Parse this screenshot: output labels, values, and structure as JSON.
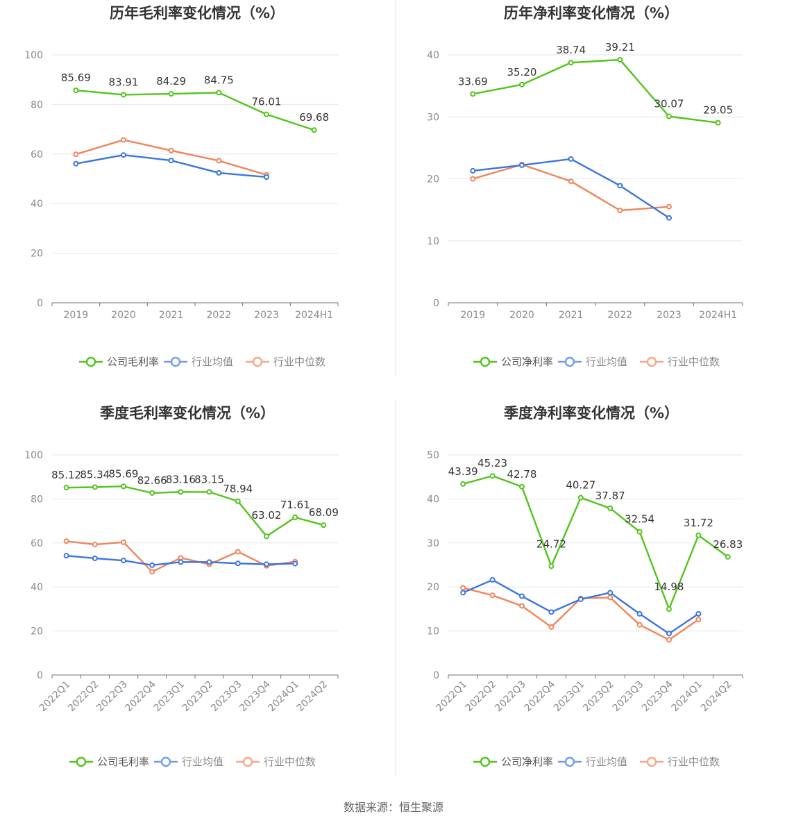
{
  "source": "数据来源：恒生聚源",
  "colors": {
    "company": "#52c41a",
    "industry_avg": "#3a75e0",
    "industry_median": "#f0845a"
  },
  "legend_labels": {
    "industry_avg": "行业均值",
    "industry_median": "行业中位数"
  },
  "chart_data": [
    {
      "id": "annual-gross",
      "type": "line",
      "title": "历年毛利率变化情况（%）",
      "categories": [
        "2019",
        "2020",
        "2021",
        "2022",
        "2023",
        "2024H1"
      ],
      "ylim": [
        0,
        100
      ],
      "yticks": [
        0,
        20,
        40,
        60,
        80,
        100
      ],
      "grid": true,
      "legend_position": "bottom",
      "series": [
        {
          "name": "公司毛利率",
          "key": "company",
          "values": [
            85.69,
            83.91,
            84.29,
            84.75,
            76.01,
            69.68
          ],
          "labels": [
            "85.69",
            "83.91",
            "84.29",
            "84.75",
            "76.01",
            "69.68"
          ]
        },
        {
          "name": "行业均值",
          "key": "industry_avg",
          "values": [
            56.1,
            59.6,
            57.4,
            52.4,
            50.7,
            null
          ]
        },
        {
          "name": "行业中位数",
          "key": "industry_median",
          "values": [
            59.9,
            65.7,
            61.4,
            57.3,
            51.6,
            null
          ]
        }
      ]
    },
    {
      "id": "annual-net",
      "type": "line",
      "title": "历年净利率变化情况（%）",
      "categories": [
        "2019",
        "2020",
        "2021",
        "2022",
        "2023",
        "2024H1"
      ],
      "ylim": [
        0,
        40
      ],
      "yticks": [
        0,
        10,
        20,
        30,
        40
      ],
      "grid": true,
      "legend_position": "bottom",
      "series": [
        {
          "name": "公司净利率",
          "key": "company",
          "values": [
            33.69,
            35.2,
            38.74,
            39.21,
            30.07,
            29.05
          ],
          "labels": [
            "33.69",
            "35.20",
            "38.74",
            "39.21",
            "30.07",
            "29.05"
          ]
        },
        {
          "name": "行业均值",
          "key": "industry_avg",
          "values": [
            21.3,
            22.2,
            23.2,
            18.9,
            13.7,
            null
          ]
        },
        {
          "name": "行业中位数",
          "key": "industry_median",
          "values": [
            20.0,
            22.3,
            19.6,
            14.9,
            15.5,
            null
          ]
        }
      ]
    },
    {
      "id": "quarterly-gross",
      "type": "line",
      "title": "季度毛利率变化情况（%）",
      "categories": [
        "2022Q1",
        "2022Q2",
        "2022Q3",
        "2022Q4",
        "2023Q1",
        "2023Q2",
        "2023Q3",
        "2023Q4",
        "2024Q1",
        "2024Q2"
      ],
      "ylim": [
        0,
        100
      ],
      "yticks": [
        0,
        20,
        40,
        60,
        80,
        100
      ],
      "grid": true,
      "legend_position": "bottom",
      "series": [
        {
          "name": "公司毛利率",
          "key": "company",
          "values": [
            85.12,
            85.34,
            85.69,
            82.66,
            83.16,
            83.15,
            78.94,
            63.02,
            71.61,
            68.09
          ],
          "labels": [
            "85.12",
            "85.34",
            "85.69",
            "82.66",
            "83.16",
            "83.15",
            "78.94",
            "63.02",
            "71.61",
            "68.09"
          ]
        },
        {
          "name": "行业均值",
          "key": "industry_avg",
          "values": [
            54.2,
            53.0,
            52.0,
            49.9,
            51.3,
            51.3,
            50.7,
            50.3,
            50.6,
            null
          ]
        },
        {
          "name": "行业中位数",
          "key": "industry_median",
          "values": [
            60.8,
            59.3,
            60.3,
            46.9,
            53.2,
            50.3,
            56.0,
            49.6,
            51.5,
            null
          ]
        }
      ]
    },
    {
      "id": "quarterly-net",
      "type": "line",
      "title": "季度净利率变化情况（%）",
      "categories": [
        "2022Q1",
        "2022Q2",
        "2022Q3",
        "2022Q4",
        "2023Q1",
        "2023Q2",
        "2023Q3",
        "2023Q4",
        "2024Q1",
        "2024Q2"
      ],
      "ylim": [
        0,
        50
      ],
      "yticks": [
        0,
        10,
        20,
        30,
        40,
        50
      ],
      "grid": true,
      "legend_position": "bottom",
      "series": [
        {
          "name": "公司净利率",
          "key": "company",
          "values": [
            43.39,
            45.23,
            42.78,
            24.72,
            40.27,
            37.87,
            32.54,
            14.98,
            31.72,
            26.83
          ],
          "labels": [
            "43.39",
            "45.23",
            "42.78",
            "24.72",
            "40.27",
            "37.87",
            "32.54",
            "14.98",
            "31.72",
            "26.83"
          ]
        },
        {
          "name": "行业均值",
          "key": "industry_avg",
          "values": [
            18.7,
            21.6,
            17.9,
            14.3,
            17.2,
            18.7,
            13.9,
            9.4,
            13.9,
            null
          ]
        },
        {
          "name": "行业中位数",
          "key": "industry_median",
          "values": [
            19.8,
            18.1,
            15.7,
            10.9,
            17.4,
            17.6,
            11.4,
            8.0,
            12.6,
            null
          ]
        }
      ]
    }
  ]
}
